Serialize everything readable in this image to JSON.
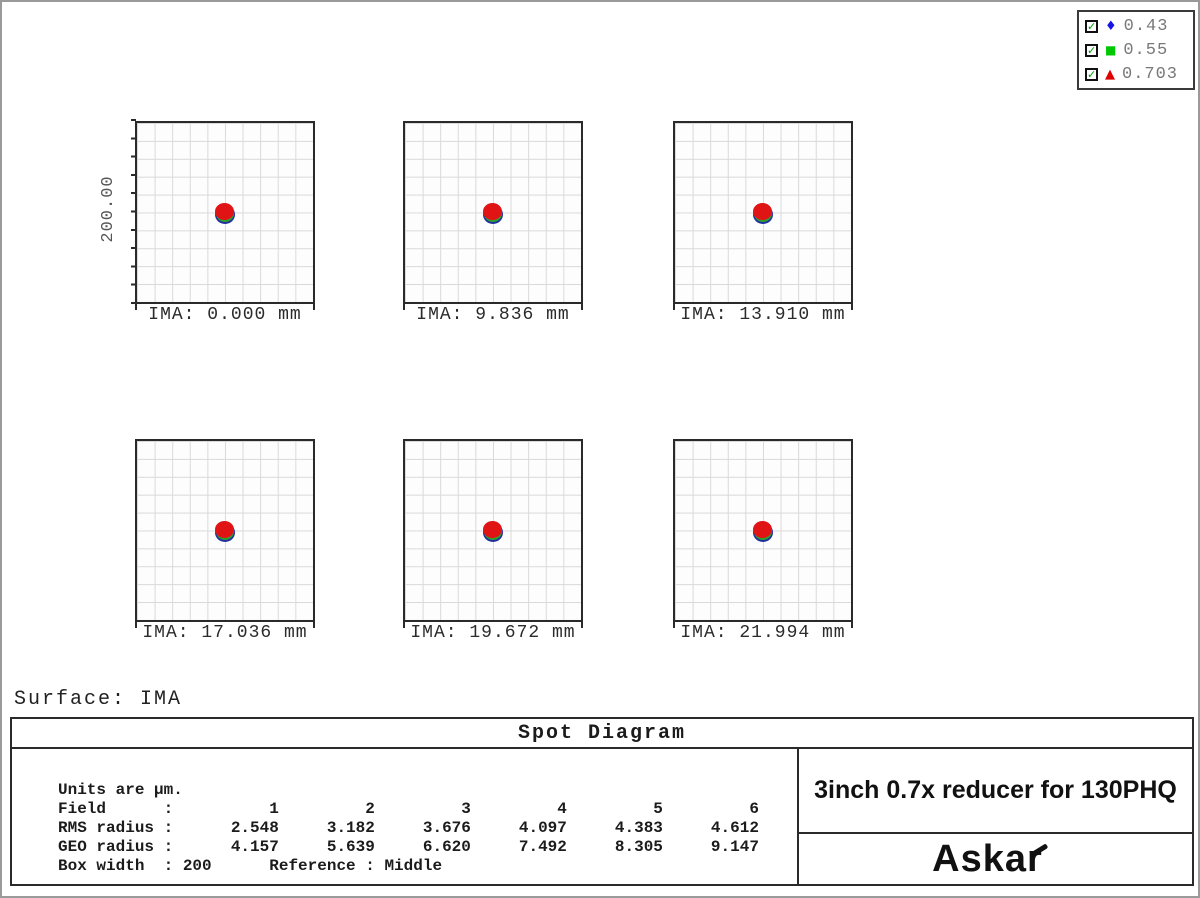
{
  "legend": {
    "checkbox_glyph": "✓",
    "items": [
      {
        "glyph": "♦",
        "color": "#1414e6",
        "label": "0.43"
      },
      {
        "glyph": "■",
        "color": "#00c800",
        "label": "0.55"
      },
      {
        "glyph": "▲",
        "color": "#e00000",
        "label": "0.703"
      }
    ]
  },
  "figure": {
    "y_scale_label": "200.00",
    "surface_label": "Surface: IMA",
    "cells": [
      {
        "ima": "IMA: 0.000 mm"
      },
      {
        "ima": "IMA: 9.836 mm"
      },
      {
        "ima": "IMA: 13.910 mm"
      },
      {
        "ima": "IMA: 17.036 mm"
      },
      {
        "ima": "IMA: 19.672 mm"
      },
      {
        "ima": "IMA: 21.994 mm"
      }
    ]
  },
  "table": {
    "title": "Spot Diagram",
    "info_block": "Units are µm.\nField      :          1         2         3         4         5         6\nRMS radius :      2.548     3.182     3.676     4.097     4.383     4.612\nGEO radius :      4.157     5.639     6.620     7.492     8.305     9.147\nBox width  : 200      Reference : Middle",
    "product_title": "3inch 0.7x reducer for 130PHQ",
    "brand": "Askar"
  },
  "chart_data": {
    "type": "scatter",
    "title": "Spot Diagram",
    "surface": "IMA",
    "units": "µm",
    "scale_bar_label": "200.00",
    "box_width_um": 200,
    "reference": "Middle",
    "wavelengths_um": [
      0.43,
      0.55,
      0.703
    ],
    "wavelength_symbols": [
      "blue-diamond",
      "green-square",
      "red-triangle"
    ],
    "fields": [
      1,
      2,
      3,
      4,
      5,
      6
    ],
    "ima_positions_mm": [
      0.0,
      9.836,
      13.91,
      17.036,
      19.672,
      21.994
    ],
    "rms_radius_um": [
      2.548,
      3.182,
      3.676,
      4.097,
      4.383,
      4.612
    ],
    "geo_radius_um": [
      4.157,
      5.639,
      6.62,
      7.492,
      8.305,
      9.147
    ],
    "layout": "6 subplots in 2 rows x 3 cols, each a 10x10 light grid with a centered spot cluster (red over green over blue)"
  }
}
